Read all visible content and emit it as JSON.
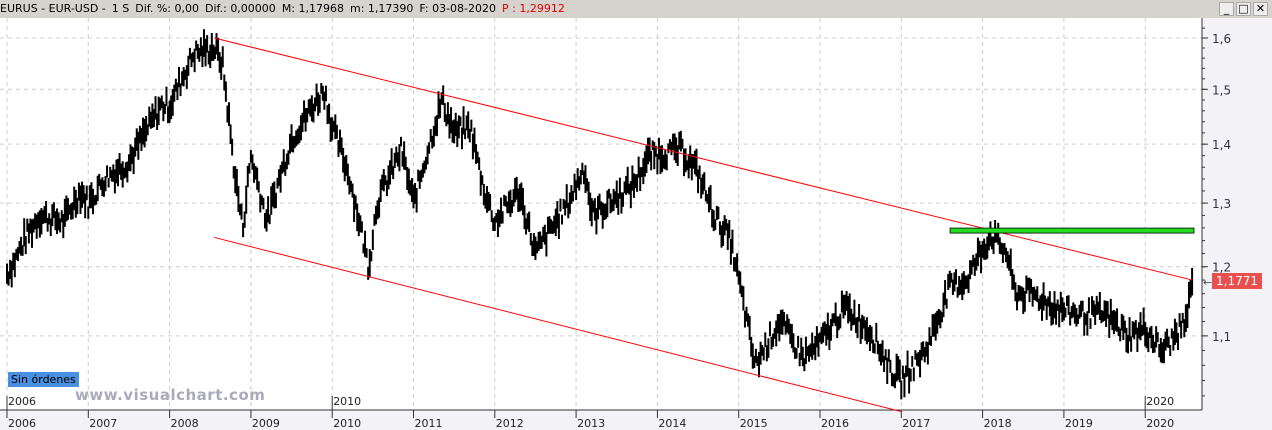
{
  "header": {
    "symbol": "EURUS - EUR-USD -",
    "period": "1 S",
    "dif_pct": "Dif. %: 0,00",
    "dif": "Dif.: 0,00000",
    "max": "M: 1,17968",
    "min": "m: 1,17390",
    "date": "F: 03-08-2020",
    "p": "P : 1,29912"
  },
  "window_buttons": [
    "_",
    "□",
    "✕"
  ],
  "orders_badge": "Sin órdenes",
  "watermark": "www.visualchart.com",
  "last_price_label": "1,1771",
  "chart_data": {
    "type": "line",
    "title": "EURUS - EUR-USD - 1 S",
    "y_scale": "log",
    "ylim": [
      1.0,
      1.64
    ],
    "xlim": [
      2005.95,
      2020.7
    ],
    "y_ticks": [
      "1,1",
      "1,2",
      "1,3",
      "1,4",
      "1,5",
      "1,6"
    ],
    "y_tick_values": [
      1.1,
      1.2,
      1.3,
      1.4,
      1.5,
      1.6
    ],
    "x_ticks": [
      "2006",
      "2007",
      "2008",
      "2009",
      "2010",
      "2011",
      "2012",
      "2013",
      "2014",
      "2015",
      "2016",
      "2017",
      "2018",
      "2019",
      "2020"
    ],
    "upper_ticks": [
      "2006",
      "2010",
      "2020"
    ],
    "series": [
      {
        "name": "EUR-USD",
        "points": [
          [
            2006.0,
            1.19
          ],
          [
            2006.1,
            1.21
          ],
          [
            2006.25,
            1.25
          ],
          [
            2006.4,
            1.28
          ],
          [
            2006.7,
            1.27
          ],
          [
            2006.9,
            1.32
          ],
          [
            2007.0,
            1.3
          ],
          [
            2007.2,
            1.34
          ],
          [
            2007.5,
            1.37
          ],
          [
            2007.9,
            1.47
          ],
          [
            2008.0,
            1.47
          ],
          [
            2008.3,
            1.57
          ],
          [
            2008.55,
            1.58
          ],
          [
            2008.65,
            1.55
          ],
          [
            2008.8,
            1.35
          ],
          [
            2008.9,
            1.26
          ],
          [
            2009.0,
            1.38
          ],
          [
            2009.2,
            1.27
          ],
          [
            2009.5,
            1.41
          ],
          [
            2009.9,
            1.5
          ],
          [
            2010.0,
            1.43
          ],
          [
            2010.2,
            1.35
          ],
          [
            2010.45,
            1.2
          ],
          [
            2010.55,
            1.3
          ],
          [
            2010.85,
            1.39
          ],
          [
            2011.0,
            1.3
          ],
          [
            2011.35,
            1.48
          ],
          [
            2011.5,
            1.42
          ],
          [
            2011.7,
            1.43
          ],
          [
            2011.85,
            1.33
          ],
          [
            2012.0,
            1.27
          ],
          [
            2012.3,
            1.32
          ],
          [
            2012.5,
            1.22
          ],
          [
            2012.9,
            1.3
          ],
          [
            2013.1,
            1.36
          ],
          [
            2013.2,
            1.28
          ],
          [
            2013.5,
            1.31
          ],
          [
            2013.7,
            1.33
          ],
          [
            2013.9,
            1.38
          ],
          [
            2014.3,
            1.39
          ],
          [
            2014.5,
            1.35
          ],
          [
            2014.7,
            1.28
          ],
          [
            2014.9,
            1.24
          ],
          [
            2015.05,
            1.15
          ],
          [
            2015.2,
            1.06
          ],
          [
            2015.5,
            1.12
          ],
          [
            2015.8,
            1.07
          ],
          [
            2016.0,
            1.09
          ],
          [
            2016.3,
            1.14
          ],
          [
            2016.6,
            1.11
          ],
          [
            2016.9,
            1.05
          ],
          [
            2017.0,
            1.04
          ],
          [
            2017.3,
            1.08
          ],
          [
            2017.6,
            1.17
          ],
          [
            2017.8,
            1.18
          ],
          [
            2018.1,
            1.25
          ],
          [
            2018.3,
            1.22
          ],
          [
            2018.4,
            1.16
          ],
          [
            2018.6,
            1.16
          ],
          [
            2018.9,
            1.14
          ],
          [
            2019.2,
            1.13
          ],
          [
            2019.5,
            1.13
          ],
          [
            2019.8,
            1.1
          ],
          [
            2020.0,
            1.11
          ],
          [
            2020.2,
            1.08
          ],
          [
            2020.3,
            1.09
          ],
          [
            2020.5,
            1.12
          ],
          [
            2020.58,
            1.177
          ]
        ]
      }
    ],
    "annotations": [
      {
        "type": "trendline",
        "color": "#ff0000",
        "from": [
          2008.55,
          1.6
        ],
        "to": [
          2020.58,
          1.18
        ]
      },
      {
        "type": "trendline",
        "color": "#ff0000",
        "from": [
          2008.55,
          1.245
        ],
        "to": [
          2017.0,
          1.0
        ]
      },
      {
        "type": "horizontal_band",
        "color": "#22dd22",
        "level": 1.255,
        "from": 2017.6,
        "to": 2020.6
      }
    ]
  }
}
